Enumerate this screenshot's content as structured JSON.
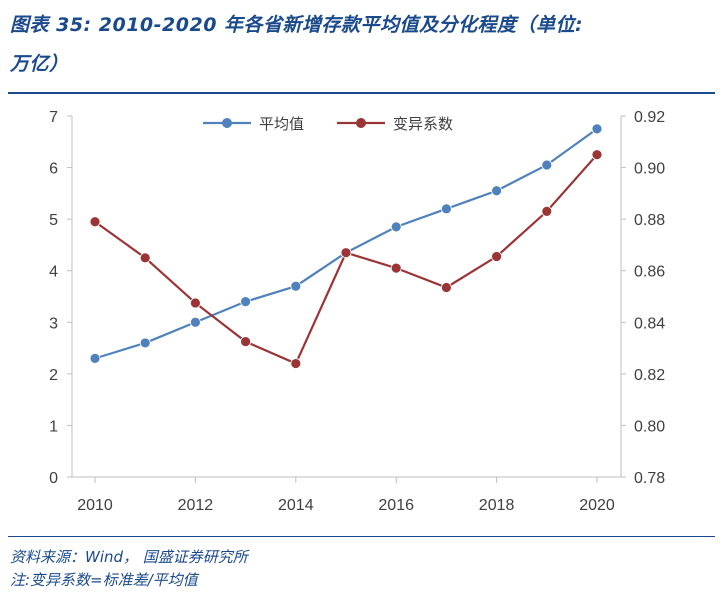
{
  "title_line1": "图表 35: 2010-2020 年各省新增存款平均值及分化程度（单位:",
  "title_line2": "万亿）",
  "source": "资料来源：Wind， 国盛证券研究所",
  "note": "注:变异系数=标准差/平均值",
  "colors": {
    "title": "#1a4a8c",
    "series1": "#4f81bd",
    "series2": "#9b3434",
    "axis": "#bfbfbf"
  },
  "chart_data": {
    "type": "line",
    "x": [
      2010,
      2011,
      2012,
      2013,
      2014,
      2015,
      2016,
      2017,
      2018,
      2019,
      2020
    ],
    "x_ticks": [
      "2010",
      "2012",
      "2014",
      "2016",
      "2018",
      "2020"
    ],
    "series": [
      {
        "name": "平均值",
        "axis": "left",
        "values": [
          2.3,
          2.6,
          3.0,
          3.4,
          3.7,
          4.35,
          4.85,
          5.2,
          5.55,
          6.05,
          6.75
        ]
      },
      {
        "name": "变异系数",
        "axis": "right",
        "values": [
          0.879,
          0.865,
          0.8475,
          0.8325,
          0.824,
          0.867,
          0.861,
          0.8535,
          0.8655,
          0.883,
          0.905
        ]
      }
    ],
    "ylim_left": [
      0,
      7
    ],
    "yticks_left": [
      "0",
      "1",
      "2",
      "3",
      "4",
      "5",
      "6",
      "7"
    ],
    "ylim_right": [
      0.78,
      0.92
    ],
    "yticks_right": [
      "0.78",
      "0.80",
      "0.82",
      "0.84",
      "0.86",
      "0.88",
      "0.90",
      "0.92"
    ],
    "grid": false,
    "legend": "top-center"
  }
}
